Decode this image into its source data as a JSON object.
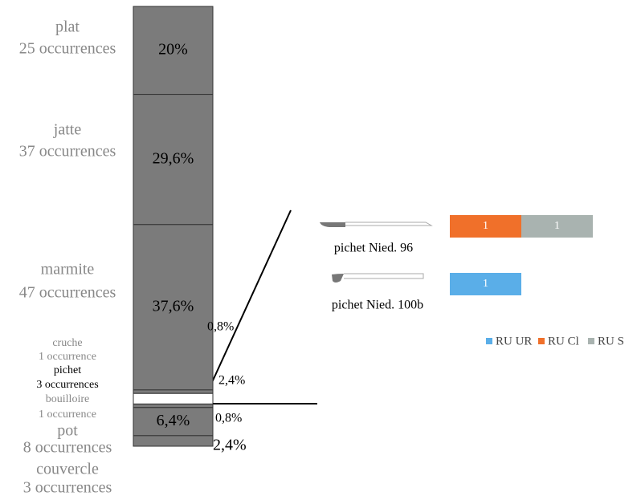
{
  "chart_data": [
    {
      "type": "stacked-column",
      "categories": [
        "plat",
        "jatte",
        "marmite",
        "cruche",
        "pichet",
        "bouilloire",
        "pot",
        "couvercle"
      ],
      "occurrence_labels": [
        "25 occurrences",
        "37 occurrences",
        "47 occurrences",
        "1 occurrence",
        "3 occurrences",
        "1 occurrence",
        "8 occurrences",
        "3 occurrences"
      ],
      "values": [
        20,
        29.6,
        37.6,
        0.8,
        2.4,
        0.8,
        6.4,
        2.4
      ],
      "value_labels": [
        "20%",
        "29,6%",
        "37,6%",
        "0,8%",
        "2,4%",
        "0,8%",
        "6,4%",
        "2,4%"
      ],
      "colors": [
        "#7b7b7b",
        "#7b7b7b",
        "#7b7b7b",
        "#7b7b7b",
        "#ffffff",
        "#7b7b7b",
        "#7b7b7b",
        "#7b7b7b"
      ]
    },
    {
      "type": "stacked-barh",
      "categories": [
        "pichet Nied. 96",
        "pichet Nied. 100b"
      ],
      "series": [
        {
          "name": "RU UR",
          "color": "#5aaee8",
          "values": [
            null,
            1
          ]
        },
        {
          "name": "RU Cl",
          "color": "#f0702a",
          "values": [
            1,
            null
          ]
        },
        {
          "name": "RU S",
          "color": "#a9b3b0",
          "values": [
            1,
            null
          ]
        }
      ],
      "legend": "right"
    }
  ]
}
